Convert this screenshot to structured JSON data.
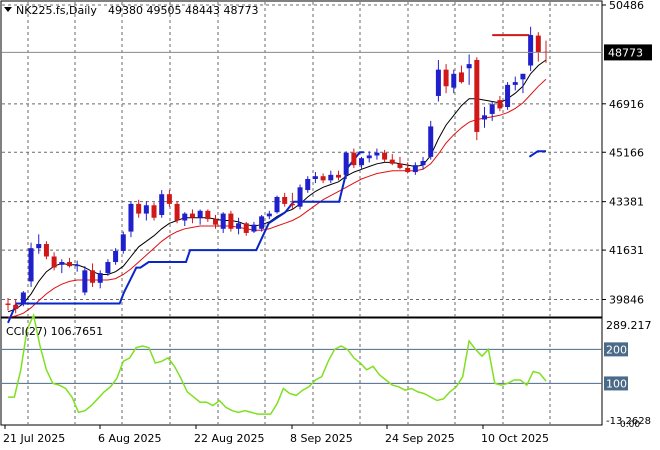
{
  "header": {
    "symbol": "NK225.fs,Daily",
    "ohlc": "49380 49505 48443 48773"
  },
  "cci_header": "CCI(27) 106.7651",
  "colors": {
    "up": "#1f1fcc",
    "down": "#d01818",
    "ma_fast": "#000000",
    "ma_slow": "#e01010",
    "channel": "#0a25c8",
    "cci": "#7fe020",
    "grid": "#6a6a6a",
    "level": "#4a6a8a",
    "price_box": "#000000"
  },
  "chart_data": [
    {
      "type": "candlestick",
      "title": "NK225.fs,Daily",
      "ylim": [
        39000,
        50486
      ],
      "price_ticks": [
        50486,
        46916,
        45166,
        43381,
        41631,
        39846
      ],
      "last_price": 48773,
      "x_labels": [
        "21 Jul 2025",
        "6 Aug 2025",
        "22 Aug 2025",
        "8 Sep 2025",
        "24 Sep 2025",
        "10 Oct 2025"
      ],
      "x_label_index": [
        0,
        11,
        22,
        33,
        44,
        55
      ],
      "ohlc": [
        [
          39700,
          39900,
          39450,
          39650
        ],
        [
          39650,
          39850,
          39350,
          39500
        ],
        [
          39700,
          40150,
          39600,
          40100
        ],
        [
          40500,
          41900,
          40300,
          41700
        ],
        [
          41700,
          42200,
          41500,
          41850
        ],
        [
          41850,
          41950,
          41300,
          41400
        ],
        [
          41400,
          41550,
          40900,
          41000
        ],
        [
          41100,
          41300,
          40800,
          41200
        ],
        [
          41200,
          41350,
          41000,
          41050
        ],
        [
          41050,
          41250,
          40850,
          41100
        ],
        [
          40100,
          41050,
          40000,
          40900
        ],
        [
          40900,
          41150,
          40300,
          40450
        ],
        [
          40450,
          40900,
          40250,
          40800
        ],
        [
          40800,
          41300,
          40700,
          41200
        ],
        [
          41200,
          41700,
          41100,
          41600
        ],
        [
          41600,
          42300,
          41500,
          42200
        ],
        [
          42300,
          43400,
          42100,
          43300
        ],
        [
          43300,
          43450,
          42800,
          42950
        ],
        [
          42950,
          43400,
          42700,
          43250
        ],
        [
          43250,
          43350,
          42700,
          42800
        ],
        [
          42900,
          43800,
          42800,
          43650
        ],
        [
          43650,
          43800,
          43200,
          43300
        ],
        [
          43300,
          43400,
          42600,
          42700
        ],
        [
          42700,
          43000,
          42500,
          42950
        ],
        [
          42950,
          43100,
          42600,
          42800
        ],
        [
          42800,
          43100,
          42550,
          43050
        ],
        [
          43050,
          43100,
          42650,
          42750
        ],
        [
          42750,
          42900,
          42400,
          42550
        ],
        [
          42400,
          43000,
          42250,
          42950
        ],
        [
          42950,
          43050,
          42300,
          42400
        ],
        [
          42400,
          42800,
          42200,
          42600
        ],
        [
          42600,
          42650,
          42150,
          42250
        ],
        [
          42300,
          42650,
          42250,
          42550
        ],
        [
          42400,
          42900,
          42300,
          42850
        ],
        [
          42850,
          43050,
          42750,
          42950
        ],
        [
          43000,
          43600,
          42950,
          43550
        ],
        [
          43550,
          43700,
          43200,
          43300
        ],
        [
          43300,
          43700,
          43100,
          43250
        ],
        [
          43200,
          44000,
          43100,
          43900
        ],
        [
          43800,
          44300,
          43700,
          44200
        ],
        [
          44200,
          44450,
          44050,
          44300
        ],
        [
          44300,
          44400,
          44050,
          44150
        ],
        [
          44150,
          44500,
          44050,
          44350
        ],
        [
          44350,
          44500,
          44150,
          44250
        ],
        [
          44350,
          45200,
          44200,
          45150
        ],
        [
          45150,
          45300,
          44600,
          44700
        ],
        [
          44700,
          45000,
          44550,
          44950
        ],
        [
          44950,
          45200,
          44800,
          45050
        ],
        [
          45050,
          45300,
          44900,
          45150
        ],
        [
          45150,
          45250,
          44800,
          44900
        ],
        [
          44900,
          45100,
          44700,
          44750
        ],
        [
          44750,
          45000,
          44550,
          44600
        ],
        [
          44600,
          44800,
          44400,
          44450
        ],
        [
          44450,
          44800,
          44350,
          44700
        ],
        [
          44700,
          45000,
          44550,
          44850
        ],
        [
          45000,
          46300,
          44900,
          46100
        ],
        [
          47200,
          48500,
          47000,
          48150
        ],
        [
          48150,
          48350,
          47300,
          47550
        ],
        [
          47500,
          48150,
          47300,
          48000
        ],
        [
          48050,
          48300,
          47650,
          47700
        ],
        [
          48200,
          48700,
          47600,
          48350
        ],
        [
          48500,
          48600,
          45600,
          45900
        ],
        [
          46350,
          46800,
          46050,
          46500
        ],
        [
          46550,
          47000,
          46300,
          46900
        ],
        [
          47050,
          47200,
          46650,
          46750
        ],
        [
          46800,
          47700,
          46700,
          47600
        ],
        [
          47600,
          47900,
          47400,
          47700
        ],
        [
          47800,
          48000,
          47300,
          48000
        ],
        [
          48300,
          49700,
          48100,
          49400
        ],
        [
          49380,
          49505,
          48443,
          48773
        ],
        [
          48800,
          49200,
          48400,
          48773
        ]
      ],
      "series": [
        {
          "name": "",
          "kind": "ma_fast",
          "values": [
            39400,
            39500,
            39700,
            40050,
            40500,
            40850,
            41050,
            41150,
            41100,
            41100,
            41000,
            40850,
            40750,
            40750,
            40850,
            41050,
            41400,
            41750,
            41950,
            42150,
            42400,
            42600,
            42700,
            42800,
            42800,
            42800,
            42800,
            42750,
            42700,
            42700,
            42650,
            42550,
            42500,
            42550,
            42650,
            42850,
            43000,
            43100,
            43300,
            43550,
            43750,
            43900,
            44000,
            44100,
            44300,
            44450,
            44550,
            44650,
            44750,
            44800,
            44800,
            44750,
            44700,
            44650,
            44700,
            45050,
            45650,
            46150,
            46500,
            46850,
            47100,
            47100,
            47050,
            47000,
            46950,
            47100,
            47300,
            47550,
            48000,
            48300,
            48500
          ]
        },
        {
          "name": "",
          "kind": "ma_slow",
          "values": [
            39200,
            39250,
            39350,
            39550,
            39800,
            40050,
            40250,
            40400,
            40500,
            40550,
            40550,
            40550,
            40550,
            40550,
            40600,
            40750,
            40950,
            41200,
            41450,
            41700,
            41950,
            42150,
            42300,
            42400,
            42450,
            42500,
            42500,
            42500,
            42500,
            42500,
            42450,
            42400,
            42350,
            42350,
            42400,
            42500,
            42600,
            42700,
            42850,
            43050,
            43250,
            43450,
            43600,
            43750,
            43900,
            44050,
            44200,
            44300,
            44400,
            44450,
            44500,
            44500,
            44500,
            44500,
            44550,
            44750,
            45100,
            45500,
            45800,
            46050,
            46250,
            46350,
            46400,
            46450,
            46500,
            46600,
            46750,
            46950,
            47250,
            47550,
            47800
          ]
        },
        {
          "name": "",
          "kind": "channel_low",
          "segments": [
            [
              [
                0,
                39000
              ],
              [
                2,
                39700
              ],
              [
                27,
                39700
              ],
              [
                28,
                40100
              ],
              [
                30,
                40700
              ],
              [
                31,
                41000
              ],
              [
                32,
                41000
              ],
              [
                34,
                41200
              ],
              [
                43,
                41200
              ],
              [
                44,
                41631
              ],
              [
                60,
                41631
              ],
              [
                63,
                42600
              ],
              [
                67,
                43000
              ],
              [
                69,
                43381
              ],
              [
                80,
                43381
              ],
              [
                82,
                44600
              ],
              [
                85,
                45166
              ],
              [
                86,
                45166
              ]
            ],
            [
              [
                126,
                45000
              ],
              [
                128,
                45200
              ],
              [
                130,
                45200
              ]
            ]
          ]
        },
        {
          "name": "",
          "kind": "channel_high",
          "segments": [
            [
              [
                117,
                49400
              ],
              [
                126,
                49400
              ]
            ]
          ]
        }
      ]
    },
    {
      "type": "line",
      "title": "CCI(27) 106.7651",
      "ylim": [
        -13.2628,
        289.217
      ],
      "axis_labels": [
        "289.217",
        "200",
        "100",
        "-13.2628",
        "0.00"
      ],
      "levels": [
        200,
        100
      ],
      "series": [
        {
          "name": "CCI(27)",
          "values": [
            60,
            60,
            140,
            260,
            300,
            210,
            140,
            100,
            95,
            85,
            60,
            15,
            20,
            35,
            55,
            75,
            90,
            115,
            165,
            175,
            205,
            210,
            205,
            160,
            165,
            175,
            150,
            115,
            75,
            60,
            45,
            45,
            35,
            50,
            30,
            20,
            15,
            20,
            15,
            10,
            10,
            10,
            40,
            85,
            70,
            65,
            80,
            90,
            110,
            120,
            165,
            200,
            210,
            200,
            175,
            160,
            140,
            150,
            125,
            110,
            95,
            90,
            80,
            85,
            75,
            70,
            60,
            50,
            55,
            75,
            90,
            120,
            225,
            200,
            180,
            200,
            100,
            95,
            100,
            110,
            110,
            95,
            135,
            130,
            106.7651
          ]
        }
      ]
    }
  ]
}
